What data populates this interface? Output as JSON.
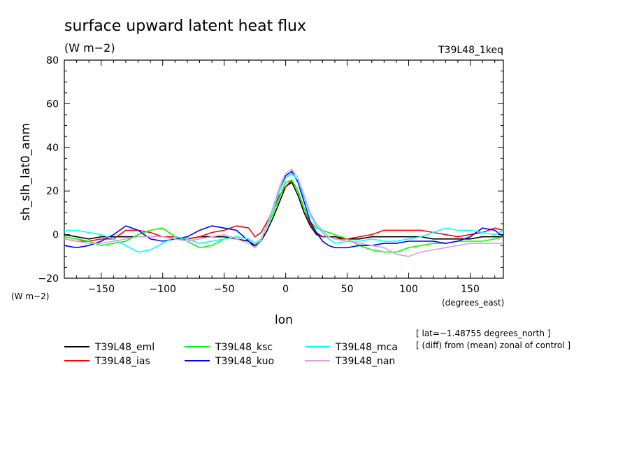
{
  "chart_data": {
    "type": "line",
    "title": "surface upward latent heat flux",
    "title_units": "(W m−2)",
    "experiment": "T39L48_1keq",
    "ylabel": "sh_slh_lat0_anm",
    "y_units": "(W m−2)",
    "xlabel": "lon",
    "x_units": "(degrees_east)",
    "xlim": [
      -180,
      177
    ],
    "ylim": [
      -20,
      80
    ],
    "x_ticks": [
      -150,
      -100,
      -50,
      0,
      50,
      100,
      150
    ],
    "x_tick_labels": [
      "−150",
      "−100",
      "−50",
      "0",
      "50",
      "100",
      "150"
    ],
    "y_ticks": [
      -20,
      0,
      20,
      40,
      60,
      80
    ],
    "y_tick_labels": [
      "−20",
      "0",
      "20",
      "40",
      "60",
      "80"
    ],
    "notes": [
      "[ lat=−1.48755 degrees_north ]",
      "[ (diff) from (mean) zonal of control ]"
    ],
    "x": [
      -180,
      -170,
      -160,
      -150,
      -140,
      -130,
      -120,
      -110,
      -100,
      -90,
      -80,
      -70,
      -60,
      -50,
      -40,
      -30,
      -25,
      -20,
      -15,
      -10,
      -5,
      0,
      5,
      10,
      15,
      20,
      25,
      30,
      35,
      40,
      50,
      60,
      70,
      80,
      90,
      100,
      110,
      120,
      130,
      140,
      150,
      160,
      170,
      177
    ],
    "series": [
      {
        "name": "T39L48_eml",
        "color": "#000000",
        "values": [
          0,
          -1,
          -2,
          -1,
          -1,
          -1,
          -1,
          -1,
          -1,
          -2,
          -2,
          -1,
          -1,
          -1,
          -2,
          -3,
          -5,
          -3,
          2,
          8,
          15,
          22,
          24,
          18,
          10,
          4,
          0,
          -1,
          -1,
          -1,
          -2,
          -2,
          -1,
          -1,
          -1,
          -1,
          -1,
          -2,
          -2,
          -2,
          -2,
          -1,
          -1,
          -1
        ]
      },
      {
        "name": "T39L48_ias",
        "color": "#ff0000",
        "values": [
          -2,
          -3,
          -3,
          -2,
          -2,
          2,
          2,
          1,
          -1,
          -1,
          -2,
          -1,
          1,
          2,
          4,
          3,
          -1,
          1,
          6,
          12,
          18,
          22,
          25,
          20,
          12,
          5,
          1,
          -1,
          -1,
          -2,
          -2,
          -1,
          0,
          2,
          2,
          2,
          2,
          1,
          0,
          -1,
          0,
          1,
          3,
          2
        ]
      },
      {
        "name": "T39L48_ksc",
        "color": "#00ff00",
        "values": [
          -1,
          -2,
          -3,
          -5,
          -4,
          -3,
          0,
          2,
          3,
          -1,
          -3,
          -6,
          -5,
          -2,
          -1,
          -2,
          -4,
          -2,
          4,
          10,
          17,
          24,
          25,
          20,
          12,
          6,
          3,
          2,
          1,
          0,
          -2,
          -5,
          -7,
          -8,
          -8,
          -6,
          -5,
          -4,
          -4,
          -3,
          -3,
          -3,
          -2,
          -1
        ]
      },
      {
        "name": "T39L48_kuo",
        "color": "#0000ff",
        "values": [
          -5,
          -6,
          -5,
          -3,
          0,
          4,
          2,
          -2,
          -3,
          -2,
          -1,
          2,
          4,
          3,
          2,
          -3,
          -6,
          -3,
          5,
          12,
          20,
          27,
          29,
          24,
          15,
          6,
          1,
          -3,
          -5,
          -6,
          -6,
          -5,
          -5,
          -4,
          -4,
          -3,
          -3,
          -3,
          -4,
          -3,
          -1,
          3,
          2,
          -1
        ]
      },
      {
        "name": "T39L48_mca",
        "color": "#00ffff",
        "values": [
          2,
          2,
          1,
          0,
          -2,
          -5,
          -8,
          -7,
          -4,
          -1,
          -2,
          -4,
          -3,
          -2,
          -1,
          -2,
          -4,
          -2,
          4,
          12,
          20,
          26,
          28,
          25,
          17,
          9,
          4,
          1,
          -2,
          -4,
          -3,
          -3,
          -2,
          -3,
          -3,
          -2,
          -1,
          1,
          3,
          2,
          2,
          1,
          0,
          2
        ]
      },
      {
        "name": "T39L48_nan",
        "color": "#dda0dd",
        "values": [
          -2,
          -3,
          -4,
          -4,
          -3,
          -2,
          -1,
          -1,
          -1,
          -2,
          -3,
          -2,
          -1,
          0,
          -2,
          -4,
          -6,
          -3,
          5,
          13,
          22,
          28,
          30,
          26,
          18,
          10,
          5,
          2,
          -1,
          -2,
          -3,
          -4,
          -5,
          -6,
          -9,
          -10,
          -8,
          -7,
          -6,
          -5,
          -4,
          -4,
          -4,
          -4
        ]
      }
    ]
  }
}
